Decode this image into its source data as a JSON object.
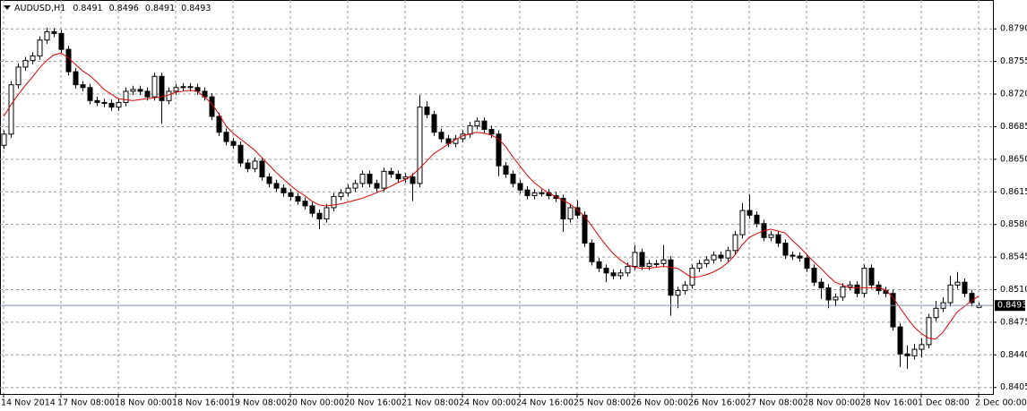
{
  "chart_data": {
    "type": "candlestick",
    "title": "AUDUSD,H1",
    "color": "#000000",
    "grid": true,
    "categories": [
      "14 Nov 2014",
      null,
      null,
      null,
      null,
      null,
      null,
      null,
      "17 Nov 08:00",
      null,
      null,
      null,
      null,
      null,
      null,
      null,
      "18 Nov 00:00",
      null,
      null,
      null,
      null,
      null,
      null,
      null,
      "18 Nov 16:00",
      null,
      null,
      null,
      null,
      null,
      null,
      null,
      "19 Nov 08:00",
      null,
      null,
      null,
      null,
      null,
      null,
      null,
      "20 Nov 00:00",
      null,
      null,
      null,
      null,
      null,
      null,
      null,
      "20 Nov 16:00",
      null,
      null,
      null,
      null,
      null,
      null,
      null,
      "21 Nov 08:00",
      null,
      null,
      null,
      null,
      null,
      null,
      null,
      "24 Nov 00:00",
      null,
      null,
      null,
      null,
      null,
      null,
      null,
      "24 Nov 16:00",
      null,
      null,
      null,
      null,
      null,
      null,
      null,
      "25 Nov 08:00",
      null,
      null,
      null,
      null,
      null,
      null,
      null,
      "26 Nov 00:00",
      null,
      null,
      null,
      null,
      null,
      null,
      null,
      "26 Nov 16:00",
      null,
      null,
      null,
      null,
      null,
      null,
      null,
      "27 Nov 08:00",
      null,
      null,
      null,
      null,
      null,
      null,
      null,
      "28 Nov 00:00",
      null,
      null,
      null,
      null,
      null,
      null,
      null,
      "28 Nov 16:00",
      null,
      null,
      null,
      null,
      null,
      null,
      null,
      "1 Dec 08:00",
      null,
      null,
      null,
      null,
      null,
      null,
      null,
      "2 Dec 00:00"
    ],
    "open": [
      0.8665,
      0.8677,
      0.873,
      0.8749,
      0.8756,
      0.8761,
      0.8778,
      0.8787,
      0.8785,
      0.8768,
      0.8744,
      0.873,
      0.8727,
      0.8713,
      0.8711,
      0.871,
      0.8706,
      0.8711,
      0.8723,
      0.8725,
      0.8723,
      0.8717,
      0.8739,
      0.8713,
      0.8723,
      0.8727,
      0.8728,
      0.8727,
      0.8723,
      0.8717,
      0.8696,
      0.8679,
      0.8669,
      0.8665,
      0.8646,
      0.864,
      0.8648,
      0.8631,
      0.8624,
      0.8619,
      0.8614,
      0.861,
      0.8605,
      0.86,
      0.8592,
      0.8586,
      0.8598,
      0.861,
      0.8614,
      0.8619,
      0.8624,
      0.8634,
      0.8624,
      0.8619,
      0.8637,
      0.8634,
      0.8629,
      0.8631,
      0.8624,
      0.8706,
      0.8698,
      0.8679,
      0.8672,
      0.8667,
      0.8672,
      0.8677,
      0.8686,
      0.8691,
      0.8682,
      0.8677,
      0.8643,
      0.8634,
      0.8624,
      0.8617,
      0.8611,
      0.8614,
      0.8614,
      0.8611,
      0.8608,
      0.8586,
      0.8598,
      0.859,
      0.856,
      0.854,
      0.8533,
      0.8528,
      0.8525,
      0.8528,
      0.8535,
      0.855,
      0.8535,
      0.8538,
      0.8538,
      0.8542,
      0.8504,
      0.8509,
      0.8515,
      0.8533,
      0.8538,
      0.8542,
      0.8547,
      0.8544,
      0.8552,
      0.8569,
      0.8595,
      0.859,
      0.8581,
      0.8566,
      0.8569,
      0.856,
      0.8547,
      0.8546,
      0.8544,
      0.8533,
      0.8518,
      0.8512,
      0.8499,
      0.8502,
      0.8513,
      0.8515,
      0.8506,
      0.8533,
      0.8515,
      0.8509,
      0.8506,
      0.847,
      0.8441,
      0.8439,
      0.8446,
      0.8451,
      0.848,
      0.849,
      0.8496,
      0.8515,
      0.8518,
      0.8506,
      0.8491
    ],
    "high": [
      0.8681,
      0.8734,
      0.8753,
      0.876,
      0.8765,
      0.8782,
      0.8791,
      0.8791,
      0.8789,
      0.8772,
      0.8748,
      0.8734,
      0.8731,
      0.8717,
      0.8715,
      0.8714,
      0.8715,
      0.8727,
      0.8729,
      0.8729,
      0.8727,
      0.8743,
      0.8743,
      0.8727,
      0.8731,
      0.8732,
      0.8732,
      0.8731,
      0.8727,
      0.8721,
      0.87,
      0.8683,
      0.8673,
      0.8669,
      0.865,
      0.8652,
      0.8652,
      0.8635,
      0.8628,
      0.8623,
      0.8618,
      0.8614,
      0.8609,
      0.8604,
      0.8596,
      0.8602,
      0.8614,
      0.8618,
      0.8623,
      0.8628,
      0.8638,
      0.8638,
      0.8628,
      0.8641,
      0.8641,
      0.8638,
      0.8635,
      0.8635,
      0.8719,
      0.8712,
      0.8702,
      0.8683,
      0.8676,
      0.8676,
      0.8681,
      0.869,
      0.8695,
      0.8695,
      0.8686,
      0.8681,
      0.8647,
      0.8638,
      0.8628,
      0.8621,
      0.8618,
      0.8618,
      0.8618,
      0.8615,
      0.8612,
      0.8602,
      0.8606,
      0.8594,
      0.8564,
      0.8544,
      0.8537,
      0.8532,
      0.8532,
      0.8539,
      0.8558,
      0.8554,
      0.8542,
      0.8542,
      0.8558,
      0.8546,
      0.8513,
      0.8519,
      0.8537,
      0.8542,
      0.8546,
      0.8551,
      0.8551,
      0.8556,
      0.8573,
      0.8603,
      0.8612,
      0.8594,
      0.8585,
      0.8573,
      0.8573,
      0.8564,
      0.8551,
      0.855,
      0.8548,
      0.8537,
      0.8522,
      0.8516,
      0.8506,
      0.8517,
      0.8519,
      0.8519,
      0.8537,
      0.8537,
      0.8519,
      0.8513,
      0.851,
      0.8474,
      0.845,
      0.8452,
      0.8458,
      0.8484,
      0.8498,
      0.8502,
      0.8525,
      0.8529,
      0.8522,
      0.851,
      0.8496
    ],
    "low": [
      0.8661,
      0.8673,
      0.8726,
      0.8745,
      0.8752,
      0.8757,
      0.8774,
      0.8781,
      0.8764,
      0.874,
      0.8726,
      0.8723,
      0.8709,
      0.8707,
      0.8706,
      0.8702,
      0.8702,
      0.8707,
      0.8719,
      0.8719,
      0.8713,
      0.8713,
      0.8688,
      0.8709,
      0.8719,
      0.8723,
      0.8723,
      0.8719,
      0.8713,
      0.8692,
      0.8675,
      0.8665,
      0.8661,
      0.8642,
      0.8636,
      0.8636,
      0.8627,
      0.862,
      0.8615,
      0.861,
      0.8606,
      0.8601,
      0.8596,
      0.8588,
      0.8575,
      0.8582,
      0.8594,
      0.8606,
      0.861,
      0.8615,
      0.862,
      0.862,
      0.8615,
      0.8615,
      0.863,
      0.8625,
      0.8625,
      0.8605,
      0.862,
      0.8694,
      0.8675,
      0.8668,
      0.8663,
      0.8663,
      0.8668,
      0.8673,
      0.8682,
      0.8678,
      0.8673,
      0.8632,
      0.863,
      0.862,
      0.8613,
      0.8607,
      0.8607,
      0.861,
      0.8607,
      0.8604,
      0.8572,
      0.8582,
      0.8586,
      0.8556,
      0.8536,
      0.8529,
      0.8518,
      0.8521,
      0.8521,
      0.8524,
      0.8531,
      0.8531,
      0.8531,
      0.8534,
      0.8534,
      0.8482,
      0.849,
      0.8505,
      0.8511,
      0.8529,
      0.8534,
      0.8538,
      0.854,
      0.854,
      0.8548,
      0.8565,
      0.8586,
      0.8577,
      0.8562,
      0.8562,
      0.8556,
      0.8543,
      0.8542,
      0.854,
      0.8529,
      0.8514,
      0.85,
      0.849,
      0.8492,
      0.8498,
      0.8509,
      0.8502,
      0.8502,
      0.8511,
      0.8505,
      0.8502,
      0.8466,
      0.8427,
      0.8425,
      0.8435,
      0.8437,
      0.8447,
      0.8476,
      0.8486,
      0.8492,
      0.8511,
      0.8502,
      0.8492,
      0.8491
    ],
    "close": [
      0.8677,
      0.873,
      0.8749,
      0.8756,
      0.8761,
      0.8778,
      0.8787,
      0.8785,
      0.8768,
      0.8744,
      0.873,
      0.8727,
      0.8713,
      0.8711,
      0.871,
      0.8706,
      0.8711,
      0.8723,
      0.8725,
      0.8723,
      0.8717,
      0.8739,
      0.8713,
      0.8723,
      0.8727,
      0.8728,
      0.8727,
      0.8723,
      0.8717,
      0.8696,
      0.8679,
      0.8669,
      0.8665,
      0.8646,
      0.864,
      0.8648,
      0.8631,
      0.8624,
      0.8619,
      0.8614,
      0.861,
      0.8605,
      0.86,
      0.8592,
      0.8586,
      0.8598,
      0.861,
      0.8614,
      0.8619,
      0.8624,
      0.8634,
      0.8624,
      0.8619,
      0.8637,
      0.8634,
      0.8629,
      0.8631,
      0.8624,
      0.8706,
      0.8698,
      0.8679,
      0.8672,
      0.8667,
      0.8672,
      0.8677,
      0.8686,
      0.8691,
      0.8682,
      0.8677,
      0.8643,
      0.8634,
      0.8624,
      0.8617,
      0.8611,
      0.8614,
      0.8614,
      0.8611,
      0.8608,
      0.8586,
      0.8598,
      0.859,
      0.856,
      0.854,
      0.8533,
      0.8528,
      0.8525,
      0.8528,
      0.8535,
      0.855,
      0.8535,
      0.8538,
      0.8538,
      0.8542,
      0.8504,
      0.8509,
      0.8515,
      0.8533,
      0.8538,
      0.8542,
      0.8547,
      0.8544,
      0.8552,
      0.8569,
      0.8595,
      0.859,
      0.8581,
      0.8566,
      0.8569,
      0.856,
      0.8547,
      0.8546,
      0.8544,
      0.8533,
      0.8518,
      0.8512,
      0.8499,
      0.8502,
      0.8513,
      0.8515,
      0.8506,
      0.8533,
      0.8515,
      0.8509,
      0.8506,
      0.847,
      0.8441,
      0.8439,
      0.8446,
      0.8451,
      0.848,
      0.849,
      0.8496,
      0.8515,
      0.8518,
      0.8506,
      0.8496,
      0.8493
    ],
    "ma": {
      "color": "#e00000",
      "values": [
        0.8696,
        0.8708,
        0.8719,
        0.8729,
        0.8738,
        0.8748,
        0.8756,
        0.8762,
        0.8764,
        0.8759,
        0.8752,
        0.8745,
        0.874,
        0.8733,
        0.8725,
        0.872,
        0.8715,
        0.8714,
        0.8713,
        0.8714,
        0.8715,
        0.8716,
        0.8717,
        0.8719,
        0.8722,
        0.8723,
        0.8724,
        0.8723,
        0.8717,
        0.871,
        0.8699,
        0.8686,
        0.8678,
        0.8672,
        0.8666,
        0.866,
        0.8652,
        0.8644,
        0.8636,
        0.8629,
        0.8622,
        0.8616,
        0.8611,
        0.8605,
        0.8601,
        0.86,
        0.8601,
        0.8602,
        0.8604,
        0.8606,
        0.8608,
        0.8611,
        0.8614,
        0.8617,
        0.8621,
        0.8625,
        0.8628,
        0.8633,
        0.864,
        0.8648,
        0.8656,
        0.8661,
        0.8666,
        0.8671,
        0.8675,
        0.8677,
        0.8679,
        0.8678,
        0.8676,
        0.8672,
        0.8664,
        0.8653,
        0.8643,
        0.8633,
        0.8625,
        0.8619,
        0.8614,
        0.861,
        0.8606,
        0.8602,
        0.8596,
        0.8589,
        0.8579,
        0.8568,
        0.8558,
        0.8549,
        0.8542,
        0.8537,
        0.8534,
        0.8533,
        0.8533,
        0.8534,
        0.8535,
        0.8534,
        0.8533,
        0.8528,
        0.8523,
        0.8524,
        0.8526,
        0.8529,
        0.8533,
        0.8539,
        0.8547,
        0.8558,
        0.8566,
        0.857,
        0.8573,
        0.8575,
        0.8573,
        0.8571,
        0.8563,
        0.8556,
        0.8548,
        0.854,
        0.8533,
        0.8525,
        0.8518,
        0.8515,
        0.8512,
        0.8512,
        0.8512,
        0.8512,
        0.8512,
        0.851,
        0.8502,
        0.8491,
        0.848,
        0.847,
        0.8463,
        0.8458,
        0.8457,
        0.8464,
        0.8475,
        0.8486,
        0.8492,
        0.8498,
        0.8503
      ]
    },
    "ylim": [
      0.8398,
      0.8821
    ],
    "yticks": [
      {
        "value": 0.879,
        "label": "0.8790"
      },
      0.8755,
      {
        "value": 0.872,
        "label": "0.8720"
      },
      0.8685,
      {
        "value": 0.865,
        "label": "0.8650"
      },
      0.8615,
      {
        "value": 0.858,
        "label": "0.8580"
      },
      0.8545,
      {
        "value": 0.851,
        "label": "0.8510"
      },
      0.8475,
      {
        "value": 0.844,
        "label": "0.8440"
      },
      0.8405
    ]
  }
}
